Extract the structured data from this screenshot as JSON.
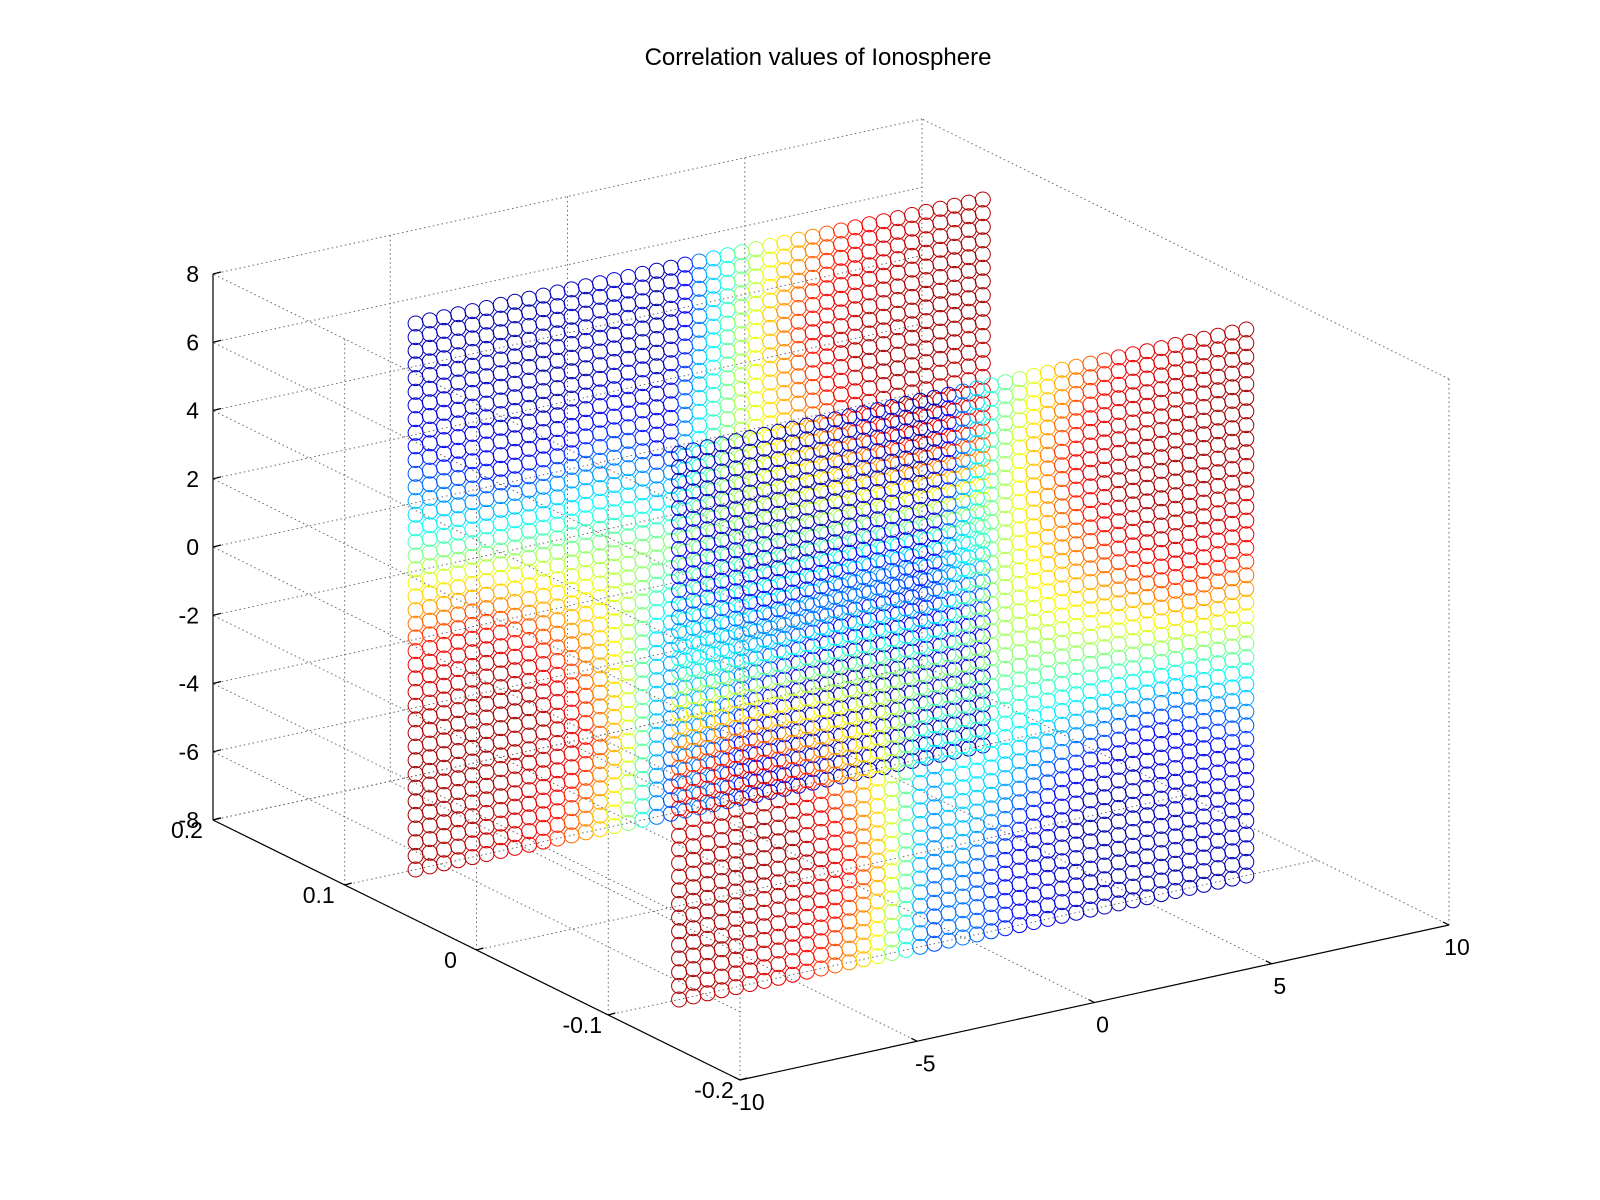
{
  "chart_data": {
    "type": "scatter",
    "title": "Correlation values of Ionosphere",
    "xlabel": "",
    "ylabel": "",
    "zlabel": "",
    "x_ticks": [
      "-10",
      "-5",
      "0",
      "5",
      "10"
    ],
    "y_ticks": [
      "-0.2",
      "-0.1",
      "0",
      "0.1",
      "0.2"
    ],
    "z_ticks": [
      "-8",
      "-6",
      "-4",
      "-2",
      "0",
      "2",
      "4",
      "6",
      "8"
    ],
    "xlim": [
      -10,
      10
    ],
    "ylim": [
      -0.2,
      0.2
    ],
    "zlim": [
      -8,
      8
    ],
    "grid": true,
    "marker": "open circle",
    "colormap": "jet",
    "colormap_colors": [
      "#00008f",
      "#0000ff",
      "#00ffff",
      "#ffff00",
      "#ff0000",
      "#800000"
    ],
    "series": [
      {
        "y_plane": 0.1,
        "x_range": [
          -8,
          8
        ],
        "z_range": [
          -8,
          8
        ]
      },
      {
        "y_plane": -0.1,
        "x_range": [
          -8,
          8
        ],
        "z_range": [
          -8,
          8
        ]
      }
    ]
  }
}
